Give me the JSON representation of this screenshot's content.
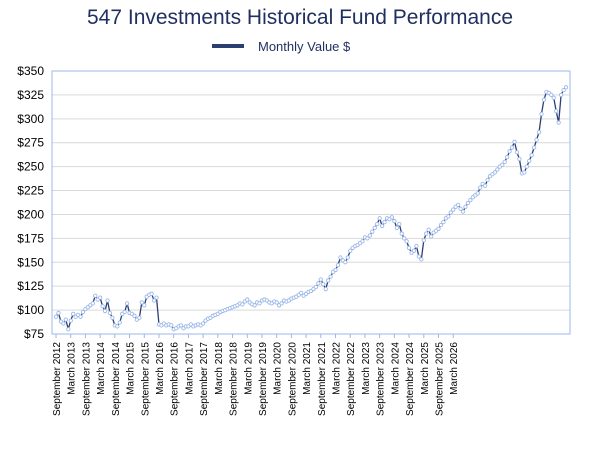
{
  "chart_data": {
    "type": "line",
    "title": "547 Investments Historical Fund Performance",
    "legend": {
      "position": "top-center"
    },
    "series": [
      {
        "name": "Monthly Value $",
        "color": "#2b3f73",
        "marker_color": "#9bb8e8",
        "x_start": "2012-09",
        "values": [
          93,
          97,
          88,
          86,
          90,
          80,
          89,
          96,
          93,
          95,
          93,
          98,
          101,
          103,
          105,
          107,
          115,
          111,
          113,
          104,
          99,
          110,
          97,
          92,
          84,
          83,
          87,
          96,
          98,
          107,
          97,
          96,
          94,
          90,
          92,
          108,
          105,
          114,
          116,
          117,
          110,
          113,
          85,
          84,
          86,
          84,
          85,
          84,
          80,
          81,
          83,
          84,
          81,
          83,
          83,
          85,
          83,
          84,
          85,
          84,
          86,
          89,
          91,
          92,
          94,
          95,
          96,
          98,
          99,
          100,
          101,
          102,
          103,
          104,
          105,
          107,
          106,
          109,
          111,
          108,
          106,
          105,
          108,
          107,
          110,
          111,
          110,
          108,
          107,
          109,
          108,
          105,
          107,
          110,
          109,
          110,
          112,
          113,
          114,
          116,
          118,
          115,
          117,
          119,
          120,
          122,
          124,
          128,
          132,
          127,
          122,
          131,
          135,
          140,
          142,
          147,
          155,
          152,
          150,
          155,
          162,
          165,
          167,
          168,
          170,
          172,
          176,
          175,
          178,
          182,
          186,
          190,
          196,
          188,
          192,
          196,
          195,
          197,
          193,
          186,
          190,
          180,
          175,
          172,
          165,
          160,
          162,
          167,
          156,
          153,
          173,
          180,
          184,
          177,
          181,
          183,
          185,
          189,
          192,
          196,
          198,
          202,
          205,
          208,
          210,
          206,
          203,
          208,
          212,
          215,
          218,
          220,
          222,
          228,
          232,
          230,
          236,
          240,
          242,
          244,
          247,
          250,
          252,
          255,
          260,
          266,
          270,
          276,
          265,
          258,
          243,
          244,
          250,
          256,
          262,
          270,
          278,
          286,
          305,
          320,
          328,
          327,
          325,
          322,
          308,
          296,
          325,
          330,
          333
        ]
      }
    ],
    "x_tick_labels": [
      "September 2012",
      "March 2013",
      "September 2013",
      "March 2014",
      "September 2014",
      "March 2015",
      "September 2015",
      "March 2016",
      "September 2016",
      "March 2017",
      "September 2017",
      "March 2018",
      "September 2018",
      "March 2019",
      "September 2019",
      "March 2020",
      "September 2020",
      "March 2021",
      "September 2021",
      "March 2022",
      "September 2022",
      "March 2023",
      "September 2023",
      "March 2024",
      "September 2024",
      "March 2025",
      "September 2025",
      "March 2026"
    ],
    "y_tick_labels": [
      "$75",
      "$100",
      "$125",
      "$150",
      "$175",
      "$200",
      "$225",
      "$250",
      "$275",
      "$300",
      "$325",
      "$350"
    ],
    "ylim": [
      75,
      350
    ],
    "y_step": 25,
    "grid": "horizontal",
    "xlabel": "",
    "ylabel": ""
  }
}
